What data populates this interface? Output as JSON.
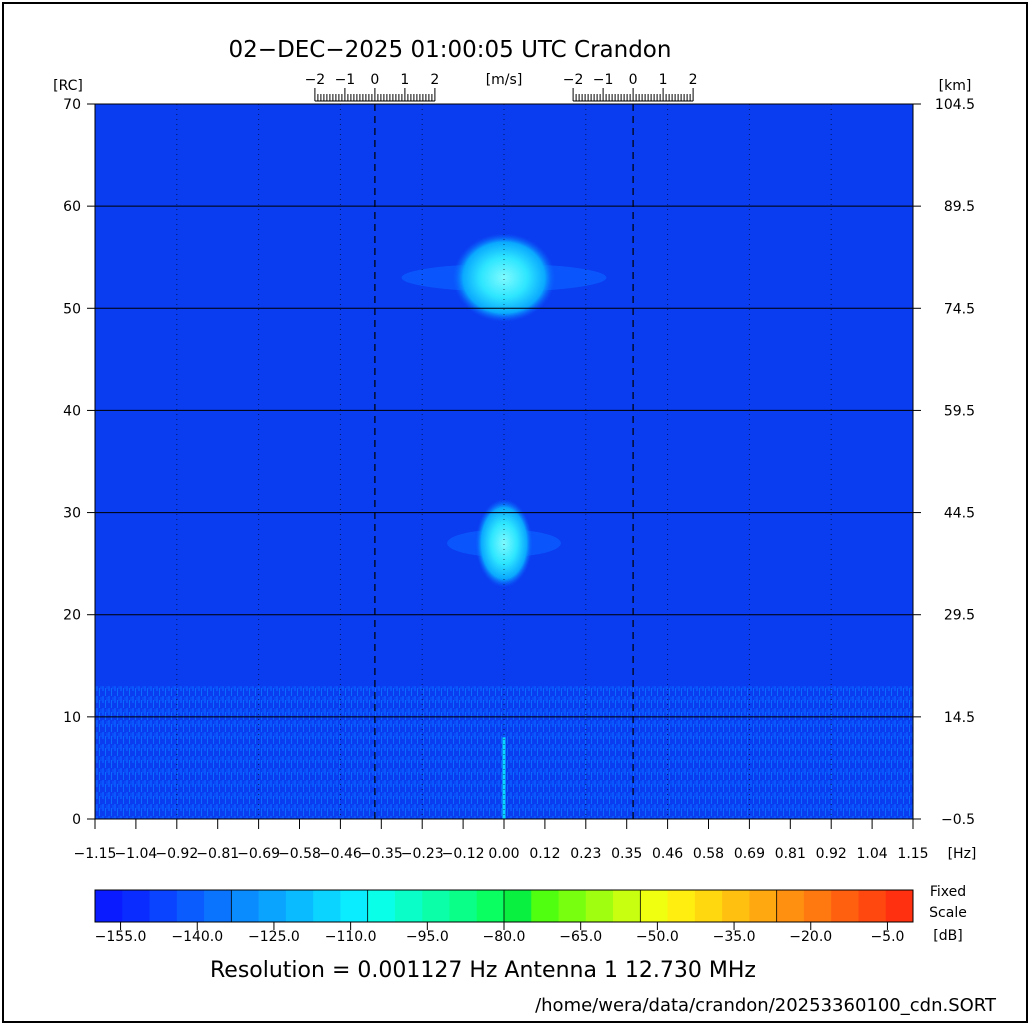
{
  "chart_data": {
    "type": "heatmap",
    "title": "02−DEC−2025 01:00:05 UTC   Crandon",
    "y_left_unit": "[RC]",
    "y_right_unit": "[km]",
    "x_unit": "[Hz]",
    "top_unit": "[m/s]",
    "x_range": [
      -1.15,
      1.15
    ],
    "y_range": [
      0,
      70
    ],
    "x_tick_labels": [
      "−1.15",
      "−1.04",
      "−0.92",
      "−0.81",
      "−0.69",
      "−0.58",
      "−0.46",
      "−0.35",
      "−0.23",
      "−0.12",
      "0.00",
      "0.12",
      "0.23",
      "0.35",
      "0.46",
      "0.58",
      "0.69",
      "0.81",
      "0.92",
      "1.04",
      "1.15"
    ],
    "y_left_ticks": [
      0,
      10,
      20,
      30,
      40,
      50,
      60,
      70
    ],
    "y_right_tick_labels": [
      "−0.5",
      "14.5",
      "29.5",
      "44.5",
      "59.5",
      "74.5",
      "89.5",
      "104.5"
    ],
    "top_scale_labels": [
      "−2",
      "−1",
      "0",
      "1",
      "2"
    ],
    "top_scale_centers_hz": [
      -0.363,
      0.363
    ],
    "background_color": "#0a3cf0",
    "features": [
      {
        "name": "echo-upper",
        "x_center_hz": 0.0,
        "y_center_rc": 53,
        "x_halfwidth_hz": 0.09,
        "y_halfwidth_rc": 3,
        "level_db": -110
      },
      {
        "name": "echo-lower",
        "x_center_hz": 0.0,
        "y_center_rc": 27,
        "x_halfwidth_hz": 0.05,
        "y_halfwidth_rc": 3,
        "level_db": -115
      }
    ],
    "colorbar": {
      "labels": [
        "−155.0",
        "−140.0",
        "−125.0",
        "−110.0",
        "−95.0",
        "−80.0",
        "−65.0",
        "−50.0",
        "−35.0",
        "−20.0",
        "−5.0"
      ],
      "min": -160,
      "max": 0,
      "colors": [
        "#0a1cff",
        "#0a2cff",
        "#0a44ff",
        "#0a5cff",
        "#0a74ff",
        "#0a8cff",
        "#0aa4ff",
        "#0abcff",
        "#0ad4ff",
        "#0aecff",
        "#0affe8",
        "#0affc8",
        "#0affa8",
        "#0aff88",
        "#0aff60",
        "#0af040",
        "#50ff10",
        "#78ff10",
        "#a0ff10",
        "#c8ff10",
        "#f0ff10",
        "#ffee10",
        "#ffd810",
        "#ffc010",
        "#ffa810",
        "#ff9010",
        "#ff7810",
        "#ff6010",
        "#ff4810",
        "#ff3010"
      ],
      "side_label_1": "Fixed",
      "side_label_2": "Scale",
      "side_label_3": "[dB]"
    }
  },
  "footer": {
    "resolution_text": "Resolution = 0.001127 Hz   Antenna  1   12.730 MHz",
    "file_path": "/home/wera/data/crandon/20253360100_cdn.SORT"
  }
}
